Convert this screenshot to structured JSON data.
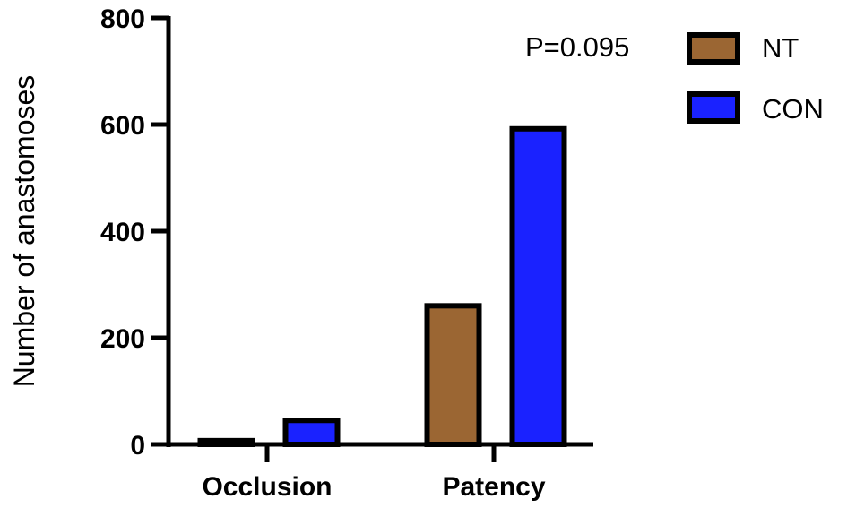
{
  "chart_data": {
    "type": "bar",
    "title": "",
    "xlabel": "",
    "ylabel": "Number of anastomoses",
    "categories": [
      "Occlusion",
      "Patency"
    ],
    "series": [
      {
        "name": "NT",
        "color": "#9B6633",
        "values": [
          12,
          265
        ]
      },
      {
        "name": "CON",
        "color": "#1A22FF",
        "values": [
          50,
          597
        ]
      }
    ],
    "ylim": [
      0,
      800
    ],
    "yticks": [
      0,
      200,
      400,
      600,
      800
    ],
    "grid": false,
    "legend_position": "top-right",
    "annotations": [
      "P=0.095"
    ]
  },
  "legend": {
    "p_value": "P=0.095",
    "items": [
      {
        "label": "NT",
        "color": "#9B6633"
      },
      {
        "label": "CON",
        "color": "#1A22FF"
      }
    ]
  },
  "axes": {
    "y_title": "Number of anastomoses",
    "y_ticks": [
      "0",
      "200",
      "400",
      "600",
      "800"
    ],
    "x_categories": [
      "Occlusion",
      "Patency"
    ]
  }
}
